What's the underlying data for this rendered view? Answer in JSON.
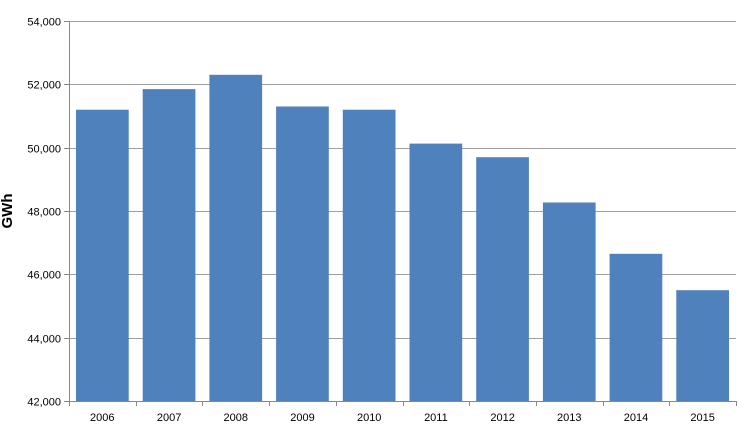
{
  "chart_data": {
    "type": "bar",
    "title": "",
    "xlabel": "",
    "ylabel": "GWh",
    "categories": [
      "2006",
      "2007",
      "2008",
      "2009",
      "2010",
      "2011",
      "2012",
      "2013",
      "2014",
      "2015"
    ],
    "series": [
      {
        "values": [
          51200,
          51850,
          52300,
          51300,
          51200,
          50130,
          49700,
          48270,
          46650,
          45500
        ],
        "color": "#4f81bd"
      }
    ],
    "ylim": [
      42000,
      54000
    ],
    "yticks": [
      42000,
      44000,
      46000,
      48000,
      50000,
      52000,
      54000
    ],
    "ytick_labels": [
      "42,000",
      "44,000",
      "46,000",
      "48,000",
      "50,000",
      "52,000",
      "54,000"
    ],
    "grid": true,
    "legend": "none",
    "gridline_color": "#a0a0a0",
    "axis_color": "#888888"
  }
}
